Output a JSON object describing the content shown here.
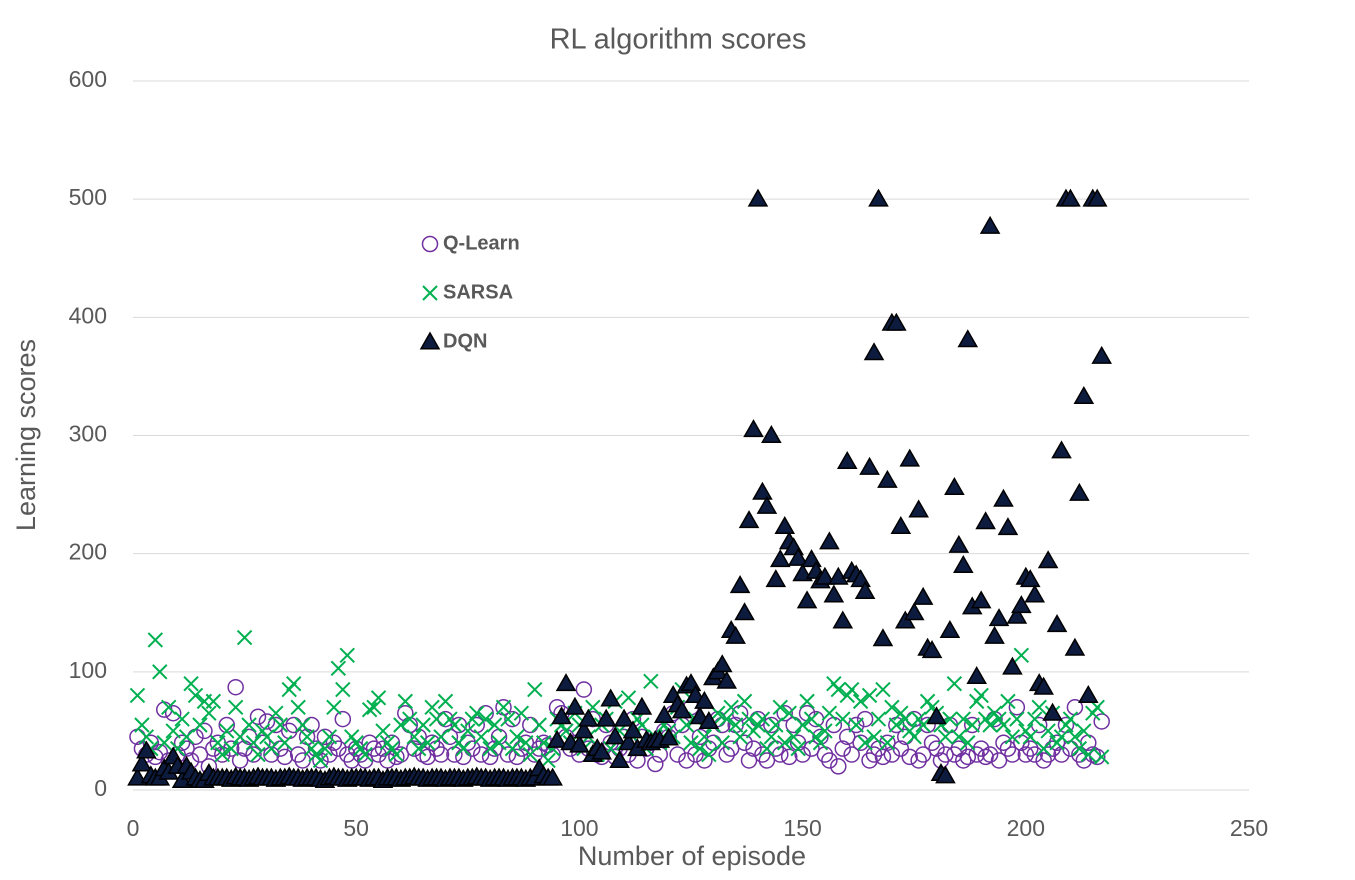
{
  "chart_data": {
    "type": "scatter",
    "title": "RL algorithm scores",
    "x_label": "Number of episode",
    "y_label": "Learning scores",
    "xlim": [
      0,
      250
    ],
    "xticks": [
      0,
      50,
      100,
      150,
      200,
      250
    ],
    "ylim": [
      0,
      600
    ],
    "yticks": [
      0,
      100,
      200,
      300,
      400,
      500,
      600
    ],
    "grid": true,
    "x": [
      1,
      2,
      3,
      4,
      5,
      6,
      7,
      8,
      9,
      10,
      11,
      12,
      13,
      14,
      15,
      16,
      17,
      18,
      19,
      20,
      21,
      22,
      23,
      24,
      25,
      26,
      27,
      28,
      29,
      30,
      31,
      32,
      33,
      34,
      35,
      36,
      37,
      38,
      39,
      40,
      41,
      42,
      43,
      44,
      45,
      46,
      47,
      48,
      49,
      50,
      51,
      52,
      53,
      54,
      55,
      56,
      57,
      58,
      59,
      60,
      61,
      62,
      63,
      64,
      65,
      66,
      67,
      68,
      69,
      70,
      71,
      72,
      73,
      74,
      75,
      76,
      77,
      78,
      79,
      80,
      81,
      82,
      83,
      84,
      85,
      86,
      87,
      88,
      89,
      90,
      91,
      92,
      93,
      94,
      95,
      96,
      97,
      98,
      99,
      100,
      101,
      102,
      103,
      104,
      105,
      106,
      107,
      108,
      109,
      110,
      111,
      112,
      113,
      114,
      115,
      116,
      117,
      118,
      119,
      120,
      121,
      122,
      123,
      124,
      125,
      126,
      127,
      128,
      129,
      130,
      131,
      132,
      133,
      134,
      135,
      136,
      137,
      138,
      139,
      140,
      141,
      142,
      143,
      144,
      145,
      146,
      147,
      148,
      149,
      150,
      151,
      152,
      153,
      154,
      155,
      156,
      157,
      158,
      159,
      160,
      161,
      162,
      163,
      164,
      165,
      166,
      167,
      168,
      169,
      170,
      171,
      172,
      173,
      174,
      175,
      176,
      177,
      178,
      179,
      180,
      181,
      182,
      183,
      184,
      185,
      186,
      187,
      188,
      189,
      190,
      191,
      192,
      193,
      194,
      195,
      196,
      197,
      198,
      199,
      200,
      201,
      202,
      203,
      204,
      205,
      206,
      207,
      208,
      209,
      210,
      211,
      212,
      213,
      214,
      215,
      216,
      217
    ],
    "series": [
      {
        "name": "Q-Learn",
        "color": "#7030a0",
        "marker": "circle",
        "values": [
          45,
          35,
          30,
          40,
          28,
          32,
          68,
          25,
          65,
          30,
          40,
          35,
          25,
          45,
          30,
          50,
          20,
          35,
          40,
          30,
          55,
          35,
          87,
          25,
          35,
          45,
          30,
          62,
          40,
          58,
          30,
          55,
          35,
          28,
          50,
          55,
          30,
          25,
          45,
          55,
          35,
          25,
          45,
          30,
          40,
          35,
          60,
          30,
          25,
          35,
          30,
          25,
          40,
          35,
          30,
          35,
          25,
          40,
          28,
          30,
          65,
          55,
          35,
          45,
          30,
          28,
          40,
          35,
          30,
          60,
          45,
          30,
          55,
          28,
          40,
          35,
          55,
          30,
          65,
          28,
          35,
          45,
          70,
          30,
          60,
          28,
          35,
          40,
          55,
          30,
          35,
          40,
          38,
          30,
          70,
          65,
          45,
          35,
          40,
          30,
          85,
          35,
          60,
          30,
          28,
          55,
          40,
          28,
          35,
          45,
          30,
          60,
          25,
          45,
          35,
          40,
          22,
          30,
          50,
          45,
          65,
          30,
          55,
          25,
          70,
          30,
          45,
          25,
          35,
          40,
          60,
          55,
          30,
          35,
          55,
          65,
          40,
          25,
          35,
          60,
          30,
          25,
          55,
          35,
          30,
          65,
          28,
          55,
          40,
          30,
          65,
          35,
          60,
          45,
          30,
          25,
          55,
          20,
          35,
          45,
          30,
          55,
          40,
          60,
          25,
          30,
          35,
          28,
          40,
          30,
          55,
          35,
          45,
          28,
          60,
          25,
          30,
          55,
          40,
          35,
          25,
          30,
          55,
          30,
          35,
          25,
          28,
          55,
          30,
          35,
          28,
          30,
          60,
          25,
          40,
          35,
          30,
          70,
          40,
          30,
          35,
          30,
          55,
          25,
          30,
          35,
          40,
          30,
          55,
          35,
          70,
          30,
          25,
          40,
          30,
          28,
          58
        ]
      },
      {
        "name": "SARSA",
        "color": "#00b050",
        "marker": "x",
        "values": [
          80,
          55,
          45,
          35,
          127,
          100,
          40,
          70,
          50,
          35,
          60,
          45,
          90,
          80,
          55,
          75,
          65,
          75,
          40,
          30,
          50,
          35,
          70,
          45,
          129,
          55,
          40,
          30,
          50,
          45,
          35,
          65,
          55,
          40,
          85,
          90,
          70,
          55,
          45,
          35,
          30,
          25,
          35,
          45,
          70,
          103,
          85,
          114,
          45,
          40,
          35,
          30,
          68,
          70,
          78,
          50,
          40,
          35,
          30,
          55,
          75,
          60,
          45,
          35,
          55,
          40,
          70,
          60,
          45,
          75,
          60,
          55,
          40,
          35,
          50,
          60,
          65,
          45,
          60,
          35,
          55,
          40,
          70,
          60,
          35,
          45,
          65,
          40,
          30,
          85,
          55,
          40,
          25,
          35,
          60,
          55,
          50,
          40,
          65,
          55,
          35,
          45,
          70,
          30,
          55,
          60,
          35,
          75,
          50,
          40,
          78,
          45,
          60,
          55,
          35,
          92,
          45,
          40,
          55,
          50,
          45,
          70,
          85,
          55,
          40,
          60,
          35,
          45,
          30,
          55,
          65,
          40,
          60,
          70,
          55,
          45,
          75,
          60,
          50,
          55,
          60,
          35,
          45,
          55,
          70,
          40,
          65,
          45,
          35,
          55,
          75,
          60,
          45,
          40,
          50,
          65,
          90,
          85,
          60,
          80,
          85,
          55,
          75,
          40,
          80,
          45,
          60,
          85,
          40,
          70,
          55,
          65,
          60,
          50,
          45,
          60,
          55,
          75,
          70,
          65,
          55,
          45,
          60,
          90,
          45,
          60,
          40,
          55,
          75,
          80,
          60,
          55,
          65,
          60,
          55,
          75,
          45,
          60,
          114,
          50,
          45,
          60,
          70,
          35,
          50,
          65,
          40,
          45,
          55,
          60,
          45,
          35,
          50,
          30,
          65,
          70,
          28
        ]
      },
      {
        "name": "DQN",
        "color": "#0d1b3e",
        "marker": "triangle",
        "values": [
          10,
          22,
          33,
          12,
          10,
          10,
          18,
          15,
          28,
          20,
          8,
          20,
          15,
          10,
          8,
          8,
          14,
          10,
          10,
          10,
          10,
          9,
          11,
          10,
          10,
          9,
          10,
          11,
          10,
          10,
          10,
          9,
          10,
          10,
          11,
          10,
          10,
          9,
          10,
          10,
          10,
          9,
          8,
          10,
          11,
          10,
          10,
          9,
          10,
          10,
          10,
          10,
          9,
          10,
          10,
          8,
          10,
          10,
          10,
          9,
          10,
          10,
          11,
          10,
          10,
          9,
          10,
          10,
          10,
          9,
          10,
          10,
          10,
          9,
          10,
          10,
          11,
          10,
          10,
          9,
          10,
          10,
          10,
          9,
          10,
          10,
          10,
          9,
          10,
          10,
          18,
          12,
          10,
          10,
          42,
          62,
          90,
          40,
          70,
          38,
          50,
          60,
          30,
          35,
          32,
          60,
          77,
          45,
          25,
          60,
          40,
          50,
          35,
          70,
          42,
          40,
          42,
          42,
          63,
          44,
          80,
          72,
          67,
          88,
          90,
          80,
          62,
          75,
          58,
          95,
          100,
          106,
          92,
          135,
          130,
          173,
          150,
          228,
          305,
          500,
          252,
          240,
          300,
          178,
          195,
          223,
          210,
          205,
          196,
          183,
          160,
          195,
          185,
          177,
          180,
          210,
          165,
          180,
          143,
          278,
          185,
          182,
          178,
          168,
          273,
          370,
          500,
          128,
          262,
          395,
          395,
          223,
          143,
          280,
          150,
          237,
          163,
          120,
          118,
          62,
          14,
          12,
          135,
          256,
          207,
          190,
          381,
          155,
          96,
          160,
          227,
          477,
          130,
          145,
          246,
          222,
          104,
          147,
          156,
          180,
          178,
          165,
          90,
          87,
          194,
          65,
          140,
          287,
          500,
          500,
          120,
          251,
          333,
          80,
          500,
          500,
          367
        ]
      }
    ]
  }
}
